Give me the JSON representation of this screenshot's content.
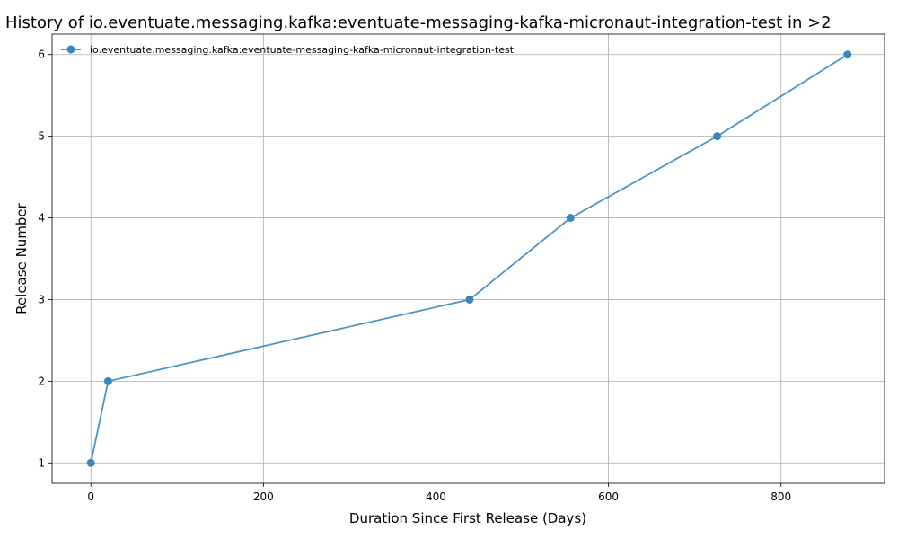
{
  "chart_data": {
    "type": "line",
    "title": "History of io.eventuate.messaging.kafka:eventuate-messaging-kafka-micronaut-integration-test in >2",
    "xlabel": "Duration Since First Release (Days)",
    "ylabel": "Release Number",
    "xlim": [
      -45,
      920
    ],
    "ylim": [
      0.75,
      6.25
    ],
    "xticks": [
      0,
      200,
      400,
      600,
      800
    ],
    "yticks": [
      1,
      2,
      3,
      4,
      5,
      6
    ],
    "grid": true,
    "legend_position": "top-left",
    "series": [
      {
        "name": "io.eventuate.messaging.kafka:eventuate-messaging-kafka-micronaut-integration-test",
        "color": "#3a87bf",
        "marker": "circle",
        "x": [
          0,
          20,
          439,
          556,
          726,
          877
        ],
        "y": [
          1,
          2,
          3,
          4,
          5,
          6
        ]
      }
    ]
  }
}
